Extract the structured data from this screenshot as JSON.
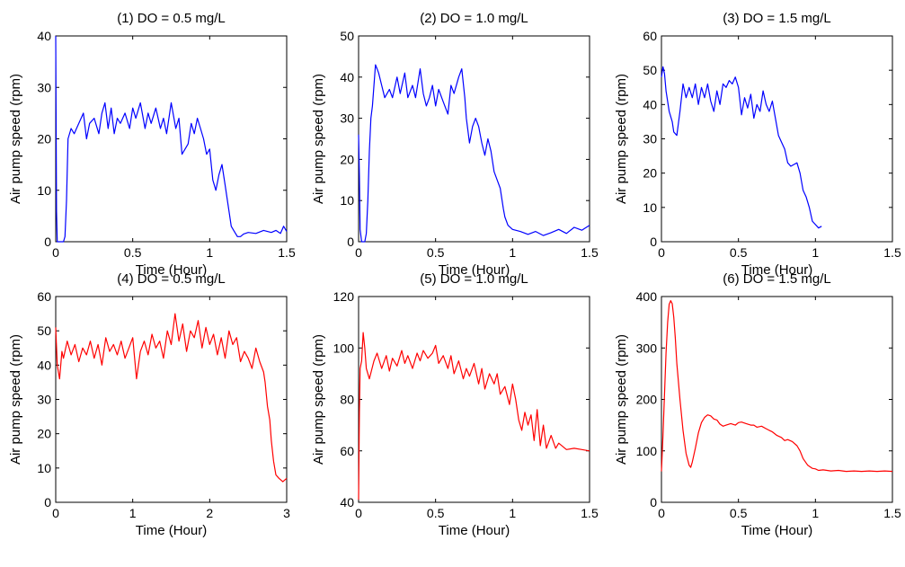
{
  "chart_data": [
    {
      "type": "line",
      "title": "(1) DO = 0.5 mg/L",
      "xlabel": "Time (Hour)",
      "ylabel": "Air pump speed (rpm)",
      "xlim": [
        0,
        1.5
      ],
      "ylim": [
        0,
        40
      ],
      "xticks": [
        0,
        0.5,
        1,
        1.5
      ],
      "xtick_labels": [
        "0",
        "0.5",
        "1",
        "1.5"
      ],
      "yticks": [
        0,
        10,
        20,
        30,
        40
      ],
      "ytick_labels": [
        "0",
        "10",
        "20",
        "30",
        "40"
      ],
      "grid": false,
      "color": "#0000ff",
      "series": [
        {
          "x": [
            0,
            0.005,
            0.01,
            0.03,
            0.05,
            0.06,
            0.07,
            0.08,
            0.1,
            0.12,
            0.15,
            0.18,
            0.2,
            0.22,
            0.25,
            0.28,
            0.3,
            0.32,
            0.34,
            0.36,
            0.38,
            0.4,
            0.42,
            0.45,
            0.48,
            0.5,
            0.52,
            0.55,
            0.58,
            0.6,
            0.62,
            0.65,
            0.68,
            0.7,
            0.72,
            0.75,
            0.78,
            0.8,
            0.82,
            0.84,
            0.86,
            0.88,
            0.9,
            0.92,
            0.94,
            0.96,
            0.98,
            1.0,
            1.02,
            1.04,
            1.06,
            1.08,
            1.1,
            1.12,
            1.14,
            1.16,
            1.18,
            1.2,
            1.22,
            1.25,
            1.3,
            1.35,
            1.4,
            1.43,
            1.46,
            1.48,
            1.5
          ],
          "y": [
            40,
            6,
            0,
            0,
            0,
            1,
            8,
            20,
            22,
            21,
            23,
            25,
            20,
            23,
            24,
            21,
            25,
            27,
            22,
            26,
            21,
            24,
            23,
            25,
            22,
            26,
            24,
            27,
            22,
            25,
            23,
            26,
            22,
            24,
            21,
            27,
            22,
            24,
            17,
            18,
            19,
            23,
            21,
            24,
            22,
            20,
            17,
            18,
            12,
            10,
            13,
            15,
            11,
            7,
            3,
            2,
            1,
            1,
            1.5,
            1.8,
            1.6,
            2.2,
            1.8,
            2.2,
            1.6,
            3,
            2
          ]
        }
      ]
    },
    {
      "type": "line",
      "title": "(2) DO = 1.0 mg/L",
      "xlabel": "Time (Hour)",
      "ylabel": "Air pump speed (rpm)",
      "xlim": [
        0,
        1.5
      ],
      "ylim": [
        0,
        50
      ],
      "xticks": [
        0,
        0.5,
        1,
        1.5
      ],
      "xtick_labels": [
        "0",
        "0.5",
        "1",
        "1.5"
      ],
      "yticks": [
        0,
        10,
        20,
        30,
        40,
        50
      ],
      "ytick_labels": [
        "0",
        "10",
        "20",
        "30",
        "40",
        "50"
      ],
      "grid": false,
      "color": "#0000ff",
      "series": [
        {
          "x": [
            0,
            0.005,
            0.01,
            0.02,
            0.03,
            0.04,
            0.05,
            0.06,
            0.07,
            0.08,
            0.09,
            0.1,
            0.11,
            0.12,
            0.13,
            0.15,
            0.17,
            0.2,
            0.22,
            0.25,
            0.27,
            0.3,
            0.32,
            0.35,
            0.37,
            0.4,
            0.42,
            0.44,
            0.46,
            0.48,
            0.5,
            0.52,
            0.55,
            0.58,
            0.6,
            0.62,
            0.65,
            0.67,
            0.69,
            0.7,
            0.72,
            0.74,
            0.76,
            0.78,
            0.8,
            0.82,
            0.84,
            0.86,
            0.88,
            0.9,
            0.92,
            0.94,
            0.95,
            0.97,
            1.0,
            1.05,
            1.1,
            1.15,
            1.2,
            1.25,
            1.3,
            1.35,
            1.4,
            1.45,
            1.5
          ],
          "y": [
            26,
            16,
            3,
            0,
            0,
            0,
            2,
            10,
            22,
            30,
            33,
            38,
            43,
            42,
            41,
            38,
            35,
            37,
            35,
            40,
            36,
            41,
            35,
            38,
            35,
            42,
            36,
            33,
            35,
            38,
            33,
            37,
            34,
            31,
            38,
            36,
            40,
            42,
            35,
            30,
            24,
            28,
            30,
            28,
            24,
            21,
            25,
            22,
            17,
            15,
            13,
            8,
            6,
            4,
            3,
            2.5,
            1.8,
            2.5,
            1.5,
            2.2,
            3,
            2,
            3.5,
            2.8,
            4
          ]
        }
      ]
    },
    {
      "type": "line",
      "title": "(3) DO = 1.5 mg/L",
      "xlabel": "Time (Hour)",
      "ylabel": "Air pump speed (rpm)",
      "xlim": [
        0,
        1.5
      ],
      "ylim": [
        0,
        60
      ],
      "xticks": [
        0,
        0.5,
        1,
        1.5
      ],
      "xtick_labels": [
        "0",
        "0.5",
        "1",
        "1.5"
      ],
      "yticks": [
        0,
        10,
        20,
        30,
        40,
        50,
        60
      ],
      "ytick_labels": [
        "0",
        "10",
        "20",
        "30",
        "40",
        "50",
        "60"
      ],
      "grid": false,
      "color": "#0000ff",
      "series": [
        {
          "x": [
            0,
            0.01,
            0.02,
            0.03,
            0.05,
            0.07,
            0.08,
            0.1,
            0.12,
            0.14,
            0.16,
            0.18,
            0.2,
            0.22,
            0.24,
            0.26,
            0.28,
            0.3,
            0.32,
            0.34,
            0.36,
            0.38,
            0.4,
            0.42,
            0.44,
            0.46,
            0.48,
            0.5,
            0.52,
            0.54,
            0.56,
            0.58,
            0.6,
            0.62,
            0.64,
            0.66,
            0.68,
            0.7,
            0.72,
            0.74,
            0.76,
            0.78,
            0.8,
            0.82,
            0.84,
            0.86,
            0.88,
            0.9,
            0.92,
            0.94,
            0.96,
            0.98,
            1.0,
            1.02,
            1.04
          ],
          "y": [
            48,
            51,
            49,
            44,
            38,
            35,
            32,
            31,
            38,
            46,
            42,
            45,
            42,
            46,
            40,
            45,
            42,
            46,
            41,
            38,
            44,
            40,
            46,
            45,
            47,
            46,
            48,
            45,
            37,
            42,
            39,
            43,
            36,
            40,
            38,
            44,
            40,
            38,
            41,
            36,
            31,
            29,
            27,
            23,
            22,
            22.5,
            23,
            20,
            15,
            13,
            10,
            6,
            5,
            4,
            4.5
          ]
        }
      ]
    },
    {
      "type": "line",
      "title": "(4) DO = 0.5 mg/L",
      "xlabel": "Time (Hour)",
      "ylabel": "Air pump speed (rpm)",
      "xlim": [
        0,
        3
      ],
      "ylim": [
        0,
        60
      ],
      "xticks": [
        0,
        1,
        2,
        3
      ],
      "xtick_labels": [
        "0",
        "1",
        "2",
        "3"
      ],
      "yticks": [
        0,
        10,
        20,
        30,
        40,
        50,
        60
      ],
      "ytick_labels": [
        "0",
        "10",
        "20",
        "30",
        "40",
        "50",
        "60"
      ],
      "grid": false,
      "color": "#ff0000",
      "series": [
        {
          "x": [
            0,
            0.02,
            0.05,
            0.08,
            0.1,
            0.15,
            0.2,
            0.25,
            0.3,
            0.35,
            0.4,
            0.45,
            0.5,
            0.55,
            0.6,
            0.65,
            0.7,
            0.75,
            0.8,
            0.85,
            0.9,
            0.95,
            1.0,
            1.05,
            1.1,
            1.15,
            1.2,
            1.25,
            1.3,
            1.35,
            1.4,
            1.45,
            1.5,
            1.55,
            1.6,
            1.65,
            1.7,
            1.75,
            1.8,
            1.85,
            1.9,
            1.95,
            2.0,
            2.05,
            2.1,
            2.15,
            2.2,
            2.25,
            2.3,
            2.35,
            2.4,
            2.45,
            2.5,
            2.55,
            2.6,
            2.65,
            2.7,
            2.72,
            2.75,
            2.78,
            2.8,
            2.83,
            2.86,
            2.9,
            2.95,
            3.0
          ],
          "y": [
            51,
            40,
            36,
            44,
            42,
            47,
            43,
            46,
            41,
            45,
            43,
            47,
            42,
            46,
            40,
            48,
            44,
            46,
            43,
            47,
            42,
            45,
            48,
            36,
            44,
            47,
            43,
            49,
            45,
            47,
            42,
            50,
            46,
            55,
            47,
            52,
            44,
            50,
            48,
            53,
            45,
            51,
            46,
            49,
            43,
            48,
            42,
            50,
            46,
            48,
            41,
            44,
            42,
            39,
            45,
            41,
            38,
            35,
            28,
            24,
            18,
            12,
            8,
            7,
            6,
            7
          ]
        }
      ]
    },
    {
      "type": "line",
      "title": "(5) DO = 1.0 mg/L",
      "xlabel": "Time (Hour)",
      "ylabel": "Air pump speed (rpm)",
      "xlim": [
        0,
        1.5
      ],
      "ylim": [
        40,
        120
      ],
      "xticks": [
        0,
        0.5,
        1,
        1.5
      ],
      "xtick_labels": [
        "0",
        "0.5",
        "1",
        "1.5"
      ],
      "yticks": [
        40,
        60,
        80,
        100,
        120
      ],
      "ytick_labels": [
        "40",
        "60",
        "80",
        "100",
        "120"
      ],
      "grid": false,
      "color": "#ff0000",
      "series": [
        {
          "x": [
            0,
            0.005,
            0.01,
            0.02,
            0.03,
            0.04,
            0.05,
            0.07,
            0.1,
            0.12,
            0.15,
            0.18,
            0.2,
            0.22,
            0.25,
            0.28,
            0.3,
            0.32,
            0.35,
            0.38,
            0.4,
            0.42,
            0.45,
            0.48,
            0.5,
            0.52,
            0.55,
            0.58,
            0.6,
            0.62,
            0.65,
            0.68,
            0.7,
            0.72,
            0.75,
            0.78,
            0.8,
            0.82,
            0.85,
            0.88,
            0.9,
            0.92,
            0.95,
            0.98,
            1.0,
            1.02,
            1.04,
            1.06,
            1.08,
            1.1,
            1.12,
            1.14,
            1.16,
            1.18,
            1.2,
            1.22,
            1.25,
            1.28,
            1.3,
            1.35,
            1.4,
            1.45,
            1.5
          ],
          "y": [
            41,
            75,
            92,
            95,
            106,
            100,
            92,
            88,
            95,
            98,
            92,
            97,
            91,
            96,
            93,
            99,
            94,
            97,
            92,
            98,
            95,
            99,
            96,
            98,
            101,
            94,
            97,
            92,
            97,
            90,
            95,
            88,
            92,
            89,
            94,
            86,
            92,
            84,
            90,
            86,
            90,
            82,
            85,
            78,
            86,
            80,
            72,
            68,
            75,
            70,
            74,
            64,
            76,
            62,
            70,
            61,
            66,
            61,
            63,
            60.5,
            61,
            60.5,
            60
          ]
        }
      ]
    },
    {
      "type": "line",
      "title": "(6) DO = 1.5 mg/L",
      "xlabel": "Time (Hour)",
      "ylabel": "Air pump speed (rpm)",
      "xlim": [
        0,
        1.5
      ],
      "ylim": [
        0,
        400
      ],
      "xticks": [
        0,
        0.5,
        1,
        1.5
      ],
      "xtick_labels": [
        "0",
        "0.5",
        "1",
        "1.5"
      ],
      "yticks": [
        0,
        100,
        200,
        300,
        400
      ],
      "ytick_labels": [
        "0",
        "100",
        "200",
        "300",
        "400"
      ],
      "grid": false,
      "color": "#ff0000",
      "series": [
        {
          "x": [
            0,
            0.01,
            0.02,
            0.03,
            0.04,
            0.05,
            0.06,
            0.07,
            0.08,
            0.09,
            0.1,
            0.12,
            0.14,
            0.16,
            0.18,
            0.19,
            0.2,
            0.22,
            0.24,
            0.26,
            0.28,
            0.3,
            0.32,
            0.34,
            0.36,
            0.38,
            0.4,
            0.42,
            0.45,
            0.48,
            0.5,
            0.52,
            0.55,
            0.58,
            0.6,
            0.62,
            0.65,
            0.68,
            0.7,
            0.72,
            0.75,
            0.78,
            0.8,
            0.82,
            0.85,
            0.88,
            0.9,
            0.92,
            0.95,
            0.98,
            1.0,
            1.02,
            1.05,
            1.1,
            1.15,
            1.2,
            1.25,
            1.3,
            1.35,
            1.4,
            1.45,
            1.5
          ],
          "y": [
            60,
            130,
            210,
            290,
            350,
            385,
            392,
            386,
            360,
            320,
            270,
            200,
            140,
            95,
            72,
            68,
            78,
            105,
            135,
            155,
            165,
            170,
            168,
            162,
            160,
            152,
            148,
            150,
            153,
            150,
            155,
            156,
            153,
            150,
            150,
            146,
            148,
            143,
            140,
            137,
            130,
            126,
            120,
            122,
            118,
            110,
            100,
            85,
            72,
            66,
            65,
            62,
            63,
            61,
            62,
            60,
            61,
            60,
            61,
            60,
            61,
            60
          ]
        }
      ]
    }
  ]
}
